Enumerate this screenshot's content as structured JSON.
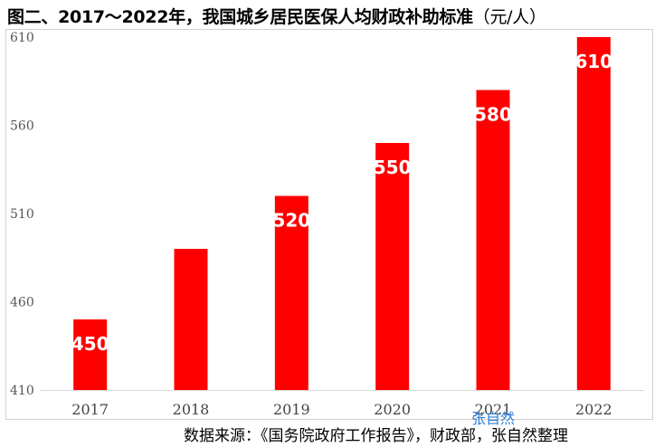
{
  "chart_data": {
    "type": "bar",
    "title": "图二、2017～2022年，我国城乡居民医保人均财政补助标准",
    "unit": "（元/人）",
    "categories": [
      "2017",
      "2018",
      "2019",
      "2020",
      "2021",
      "2022"
    ],
    "values": [
      450,
      490,
      520,
      550,
      580,
      610
    ],
    "data_labels": [
      "450",
      "",
      "520",
      "550",
      "580",
      "610"
    ],
    "ylim": [
      410,
      610
    ],
    "yticks": [
      410,
      460,
      510,
      560,
      610
    ],
    "xlabel": "",
    "ylabel": "",
    "grid": false,
    "bar_color": "#ff0000"
  },
  "watermark": "张自然",
  "source": "数据来源：《国务院政府工作报告》，财政部，张自然整理"
}
